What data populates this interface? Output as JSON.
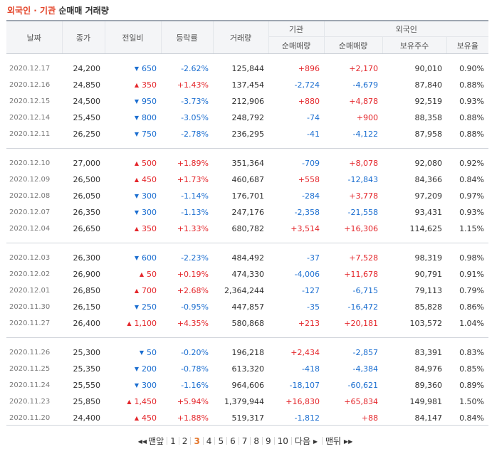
{
  "title": {
    "part1": "외국인",
    "dot": " · ",
    "part2": "기관",
    "part3": " 순매매 거래량"
  },
  "colors": {
    "up": "#e4262b",
    "down": "#1b6ed0",
    "title_red": "#e4462b",
    "current_page": "#e4762b"
  },
  "headers": {
    "date": "날짜",
    "close": "종가",
    "change": "전일비",
    "rate": "등락률",
    "volume": "거래량",
    "inst": "기관",
    "inst_net": "순매매량",
    "foreign": "외국인",
    "foreign_net": "순매매량",
    "foreign_shares": "보유주수",
    "foreign_ratio": "보유율"
  },
  "groups": [
    [
      {
        "date": "2020.12.17",
        "close": "24,200",
        "dir": "down",
        "change": "650",
        "rate": "-2.62%",
        "volume": "125,844",
        "inst": "+896",
        "foreign": "+2,170",
        "shares": "90,010",
        "ratio": "0.90%"
      },
      {
        "date": "2020.12.16",
        "close": "24,850",
        "dir": "up",
        "change": "350",
        "rate": "+1.43%",
        "volume": "137,454",
        "inst": "-2,724",
        "foreign": "-4,679",
        "shares": "87,840",
        "ratio": "0.88%"
      },
      {
        "date": "2020.12.15",
        "close": "24,500",
        "dir": "down",
        "change": "950",
        "rate": "-3.73%",
        "volume": "212,906",
        "inst": "+880",
        "foreign": "+4,878",
        "shares": "92,519",
        "ratio": "0.93%"
      },
      {
        "date": "2020.12.14",
        "close": "25,450",
        "dir": "down",
        "change": "800",
        "rate": "-3.05%",
        "volume": "248,792",
        "inst": "-74",
        "foreign": "+900",
        "shares": "88,358",
        "ratio": "0.88%"
      },
      {
        "date": "2020.12.11",
        "close": "26,250",
        "dir": "down",
        "change": "750",
        "rate": "-2.78%",
        "volume": "236,295",
        "inst": "-41",
        "foreign": "-4,122",
        "shares": "87,958",
        "ratio": "0.88%"
      }
    ],
    [
      {
        "date": "2020.12.10",
        "close": "27,000",
        "dir": "up",
        "change": "500",
        "rate": "+1.89%",
        "volume": "351,364",
        "inst": "-709",
        "foreign": "+8,078",
        "shares": "92,080",
        "ratio": "0.92%"
      },
      {
        "date": "2020.12.09",
        "close": "26,500",
        "dir": "up",
        "change": "450",
        "rate": "+1.73%",
        "volume": "460,687",
        "inst": "+558",
        "foreign": "-12,843",
        "shares": "84,366",
        "ratio": "0.84%"
      },
      {
        "date": "2020.12.08",
        "close": "26,050",
        "dir": "down",
        "change": "300",
        "rate": "-1.14%",
        "volume": "176,701",
        "inst": "-284",
        "foreign": "+3,778",
        "shares": "97,209",
        "ratio": "0.97%"
      },
      {
        "date": "2020.12.07",
        "close": "26,350",
        "dir": "down",
        "change": "300",
        "rate": "-1.13%",
        "volume": "247,176",
        "inst": "-2,358",
        "foreign": "-21,558",
        "shares": "93,431",
        "ratio": "0.93%"
      },
      {
        "date": "2020.12.04",
        "close": "26,650",
        "dir": "up",
        "change": "350",
        "rate": "+1.33%",
        "volume": "680,782",
        "inst": "+3,514",
        "foreign": "+16,306",
        "shares": "114,625",
        "ratio": "1.15%"
      }
    ],
    [
      {
        "date": "2020.12.03",
        "close": "26,300",
        "dir": "down",
        "change": "600",
        "rate": "-2.23%",
        "volume": "484,492",
        "inst": "-37",
        "foreign": "+7,528",
        "shares": "98,319",
        "ratio": "0.98%"
      },
      {
        "date": "2020.12.02",
        "close": "26,900",
        "dir": "up",
        "change": "50",
        "rate": "+0.19%",
        "volume": "474,330",
        "inst": "-4,006",
        "foreign": "+11,678",
        "shares": "90,791",
        "ratio": "0.91%"
      },
      {
        "date": "2020.12.01",
        "close": "26,850",
        "dir": "up",
        "change": "700",
        "rate": "+2.68%",
        "volume": "2,364,244",
        "inst": "-127",
        "foreign": "-6,715",
        "shares": "79,113",
        "ratio": "0.79%"
      },
      {
        "date": "2020.11.30",
        "close": "26,150",
        "dir": "down",
        "change": "250",
        "rate": "-0.95%",
        "volume": "447,857",
        "inst": "-35",
        "foreign": "-16,472",
        "shares": "85,828",
        "ratio": "0.86%"
      },
      {
        "date": "2020.11.27",
        "close": "26,400",
        "dir": "up",
        "change": "1,100",
        "rate": "+4.35%",
        "volume": "580,868",
        "inst": "+213",
        "foreign": "+20,181",
        "shares": "103,572",
        "ratio": "1.04%"
      }
    ],
    [
      {
        "date": "2020.11.26",
        "close": "25,300",
        "dir": "down",
        "change": "50",
        "rate": "-0.20%",
        "volume": "196,218",
        "inst": "+2,434",
        "foreign": "-2,857",
        "shares": "83,391",
        "ratio": "0.83%"
      },
      {
        "date": "2020.11.25",
        "close": "25,350",
        "dir": "down",
        "change": "200",
        "rate": "-0.78%",
        "volume": "613,320",
        "inst": "-418",
        "foreign": "-4,384",
        "shares": "84,976",
        "ratio": "0.85%"
      },
      {
        "date": "2020.11.24",
        "close": "25,550",
        "dir": "down",
        "change": "300",
        "rate": "-1.16%",
        "volume": "964,606",
        "inst": "-18,107",
        "foreign": "-60,621",
        "shares": "89,360",
        "ratio": "0.89%"
      },
      {
        "date": "2020.11.23",
        "close": "25,850",
        "dir": "up",
        "change": "1,450",
        "rate": "+5.94%",
        "volume": "1,379,944",
        "inst": "+16,830",
        "foreign": "+65,834",
        "shares": "149,981",
        "ratio": "1.50%"
      },
      {
        "date": "2020.11.20",
        "close": "24,400",
        "dir": "up",
        "change": "450",
        "rate": "+1.88%",
        "volume": "519,317",
        "inst": "-1,812",
        "foreign": "+88",
        "shares": "84,147",
        "ratio": "0.84%"
      }
    ]
  ],
  "pager": {
    "first": "맨앞",
    "pages": [
      "1",
      "2",
      "3",
      "4",
      "5",
      "6",
      "7",
      "8",
      "9",
      "10"
    ],
    "current": "3",
    "next": "다음",
    "last": "맨뒤"
  }
}
